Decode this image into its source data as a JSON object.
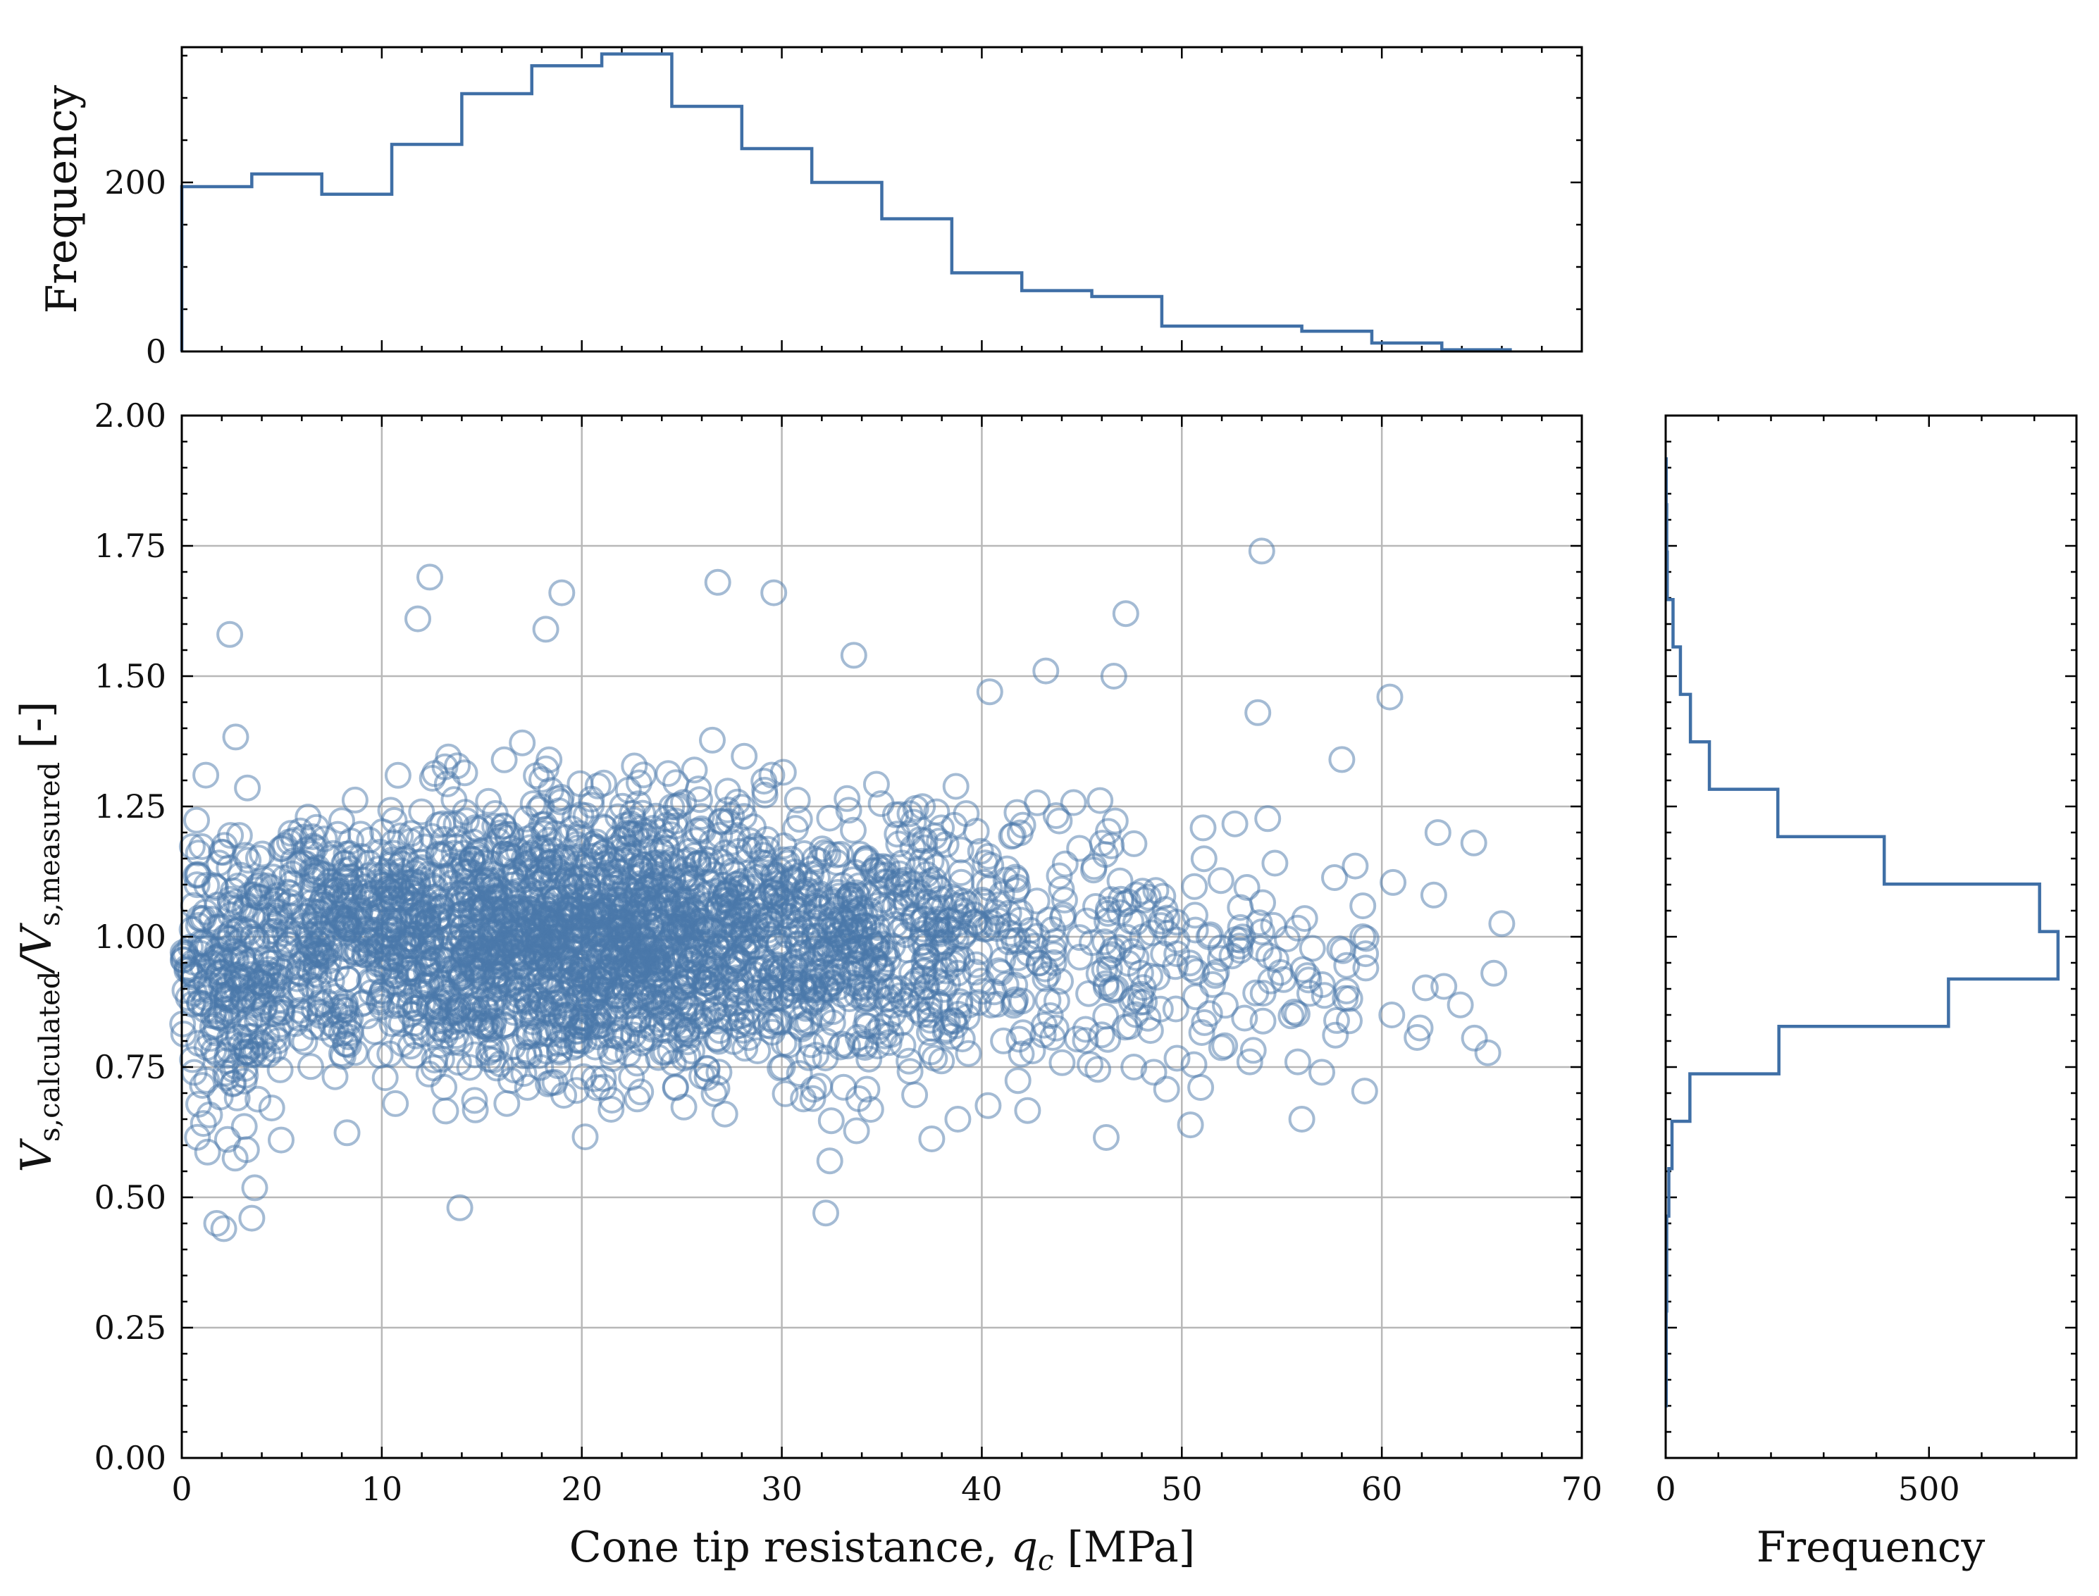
{
  "chart_data": [
    {
      "panel": "scatter",
      "type": "scatter",
      "xlabel_text": "Cone tip resistance, ",
      "xlabel_symbol": "q",
      "xlabel_sub": "c",
      "xlabel_unit": " [MPa]",
      "ylabel_parts": [
        "V",
        "s,calculated",
        "/V",
        "s,measured",
        " [-]"
      ],
      "xlim": [
        0,
        70
      ],
      "ylim": [
        0,
        2
      ],
      "xticks": [
        0,
        10,
        20,
        30,
        40,
        50,
        60,
        70
      ],
      "xtick_labels": [
        "0",
        "10",
        "20",
        "30",
        "40",
        "50",
        "60",
        "70"
      ],
      "yticks": [
        0,
        0.25,
        0.5,
        0.75,
        1.0,
        1.25,
        1.5,
        1.75,
        2.0
      ],
      "ytick_labels": [
        "0.00",
        "0.25",
        "0.50",
        "0.75",
        "1.00",
        "1.25",
        "1.50",
        "1.75",
        "2.00"
      ],
      "grid": true,
      "marker": "open-circle",
      "color": "#4a78aa",
      "marker_alpha": 0.5,
      "n_points": 3100,
      "points_note_values": [
        [
          2.4,
          1.58
        ],
        [
          12.4,
          1.69
        ],
        [
          19.0,
          1.66
        ],
        [
          29.6,
          1.66
        ],
        [
          33.6,
          1.54
        ],
        [
          54.0,
          1.74
        ],
        [
          47.2,
          1.62
        ],
        [
          53.8,
          1.43
        ],
        [
          60.4,
          1.46
        ],
        [
          64.6,
          1.18
        ],
        [
          65.6,
          0.93
        ],
        [
          60.5,
          0.85
        ],
        [
          56.0,
          0.65
        ],
        [
          57.0,
          0.74
        ],
        [
          47.6,
          0.75
        ],
        [
          48.6,
          0.74
        ],
        [
          2.1,
          0.44
        ],
        [
          3.5,
          0.46
        ],
        [
          13.9,
          0.48
        ],
        [
          32.2,
          0.47
        ],
        [
          32.4,
          0.57
        ],
        [
          38.8,
          0.65
        ],
        [
          0.8,
          1.12
        ],
        [
          1.2,
          1.31
        ],
        [
          11.8,
          1.61
        ],
        [
          18.2,
          1.59
        ],
        [
          26.8,
          1.68
        ],
        [
          43.2,
          1.51
        ],
        [
          46.6,
          1.5
        ],
        [
          40.4,
          1.47
        ],
        [
          58.0,
          1.34
        ],
        [
          62.6,
          1.08
        ],
        [
          59.2,
          0.94
        ],
        [
          55.8,
          0.76
        ],
        [
          53.4,
          0.76
        ]
      ]
    },
    {
      "panel": "top-histogram",
      "type": "step",
      "ylabel": "Frequency",
      "xlim": [
        0,
        70
      ],
      "ylim": [
        0,
        360
      ],
      "yticks": [
        0,
        200
      ],
      "ytick_labels": [
        "0",
        "200"
      ],
      "color": "#3f6fa6",
      "bin_edges": [
        0,
        3.5,
        7.0,
        10.5,
        14.0,
        17.5,
        21.0,
        24.5,
        28.0,
        31.5,
        35.0,
        38.5,
        42.0,
        45.5,
        49.0,
        52.5,
        56.0,
        59.5,
        63.0,
        66.5
      ],
      "counts": [
        195,
        210,
        186,
        245,
        305,
        338,
        352,
        290,
        240,
        200,
        157,
        93,
        72,
        65,
        30,
        30,
        24,
        10,
        2
      ]
    },
    {
      "panel": "right-histogram",
      "type": "step",
      "xlabel": "Frequency",
      "xlim": [
        0,
        780
      ],
      "ylim": [
        0,
        2
      ],
      "xticks": [
        0,
        500
      ],
      "xtick_labels": [
        "0",
        "500"
      ],
      "color": "#3f6fa6",
      "bin_edges": [
        0.1,
        0.191,
        0.282,
        0.373,
        0.464,
        0.555,
        0.646,
        0.737,
        0.828,
        0.919,
        1.01,
        1.101,
        1.192,
        1.283,
        1.374,
        1.465,
        1.556,
        1.647,
        1.738,
        1.829,
        1.92
      ],
      "counts": [
        1,
        1,
        2,
        2,
        6,
        12,
        46,
        215,
        537,
        745,
        710,
        415,
        213,
        83,
        47,
        28,
        14,
        3,
        2,
        1
      ]
    }
  ]
}
